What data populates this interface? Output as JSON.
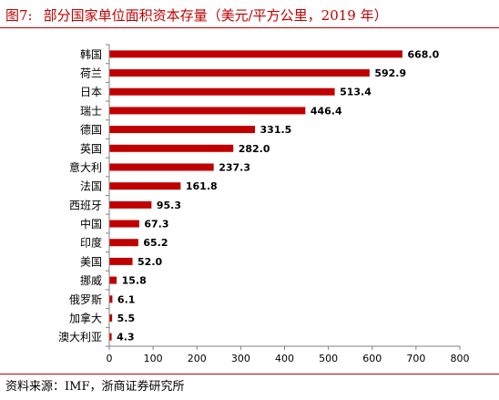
{
  "figure": {
    "number": "图7:",
    "title": "部分国家单位面积资本存量（美元/平方公里，2019 年）",
    "source": "资料来源：IMF，浙商证券研究所"
  },
  "chart_data": {
    "type": "bar",
    "orientation": "horizontal",
    "categories": [
      "韩国",
      "荷兰",
      "日本",
      "瑞士",
      "德国",
      "英国",
      "意大利",
      "法国",
      "西班牙",
      "中国",
      "印度",
      "美国",
      "挪威",
      "俄罗斯",
      "加拿大",
      "澳大利亚"
    ],
    "series": [
      {
        "name": "单位面积资本存量（美元/平方公里）",
        "values": [
          668.0,
          592.9,
          513.4,
          446.4,
          331.5,
          282.0,
          237.3,
          161.8,
          95.3,
          67.3,
          65.2,
          52.0,
          15.8,
          6.1,
          5.5,
          4.3
        ],
        "labels": [
          "668.0",
          "592.9",
          "513.4",
          "446.4",
          "331.5",
          "282.0",
          "237.3",
          "161.8",
          "95.3",
          "67.3",
          "65.2",
          "52.0",
          "15.8",
          "6.1",
          "5.5",
          "4.3"
        ]
      }
    ],
    "xlim": [
      0,
      800
    ],
    "xticks": [
      "0",
      "100",
      "200",
      "300",
      "400",
      "500",
      "600",
      "700",
      "800"
    ],
    "grid": false,
    "legend_position": "bottom",
    "colors": {
      "bar": "#c00000",
      "axis": "#808080",
      "text": "#000000"
    }
  }
}
